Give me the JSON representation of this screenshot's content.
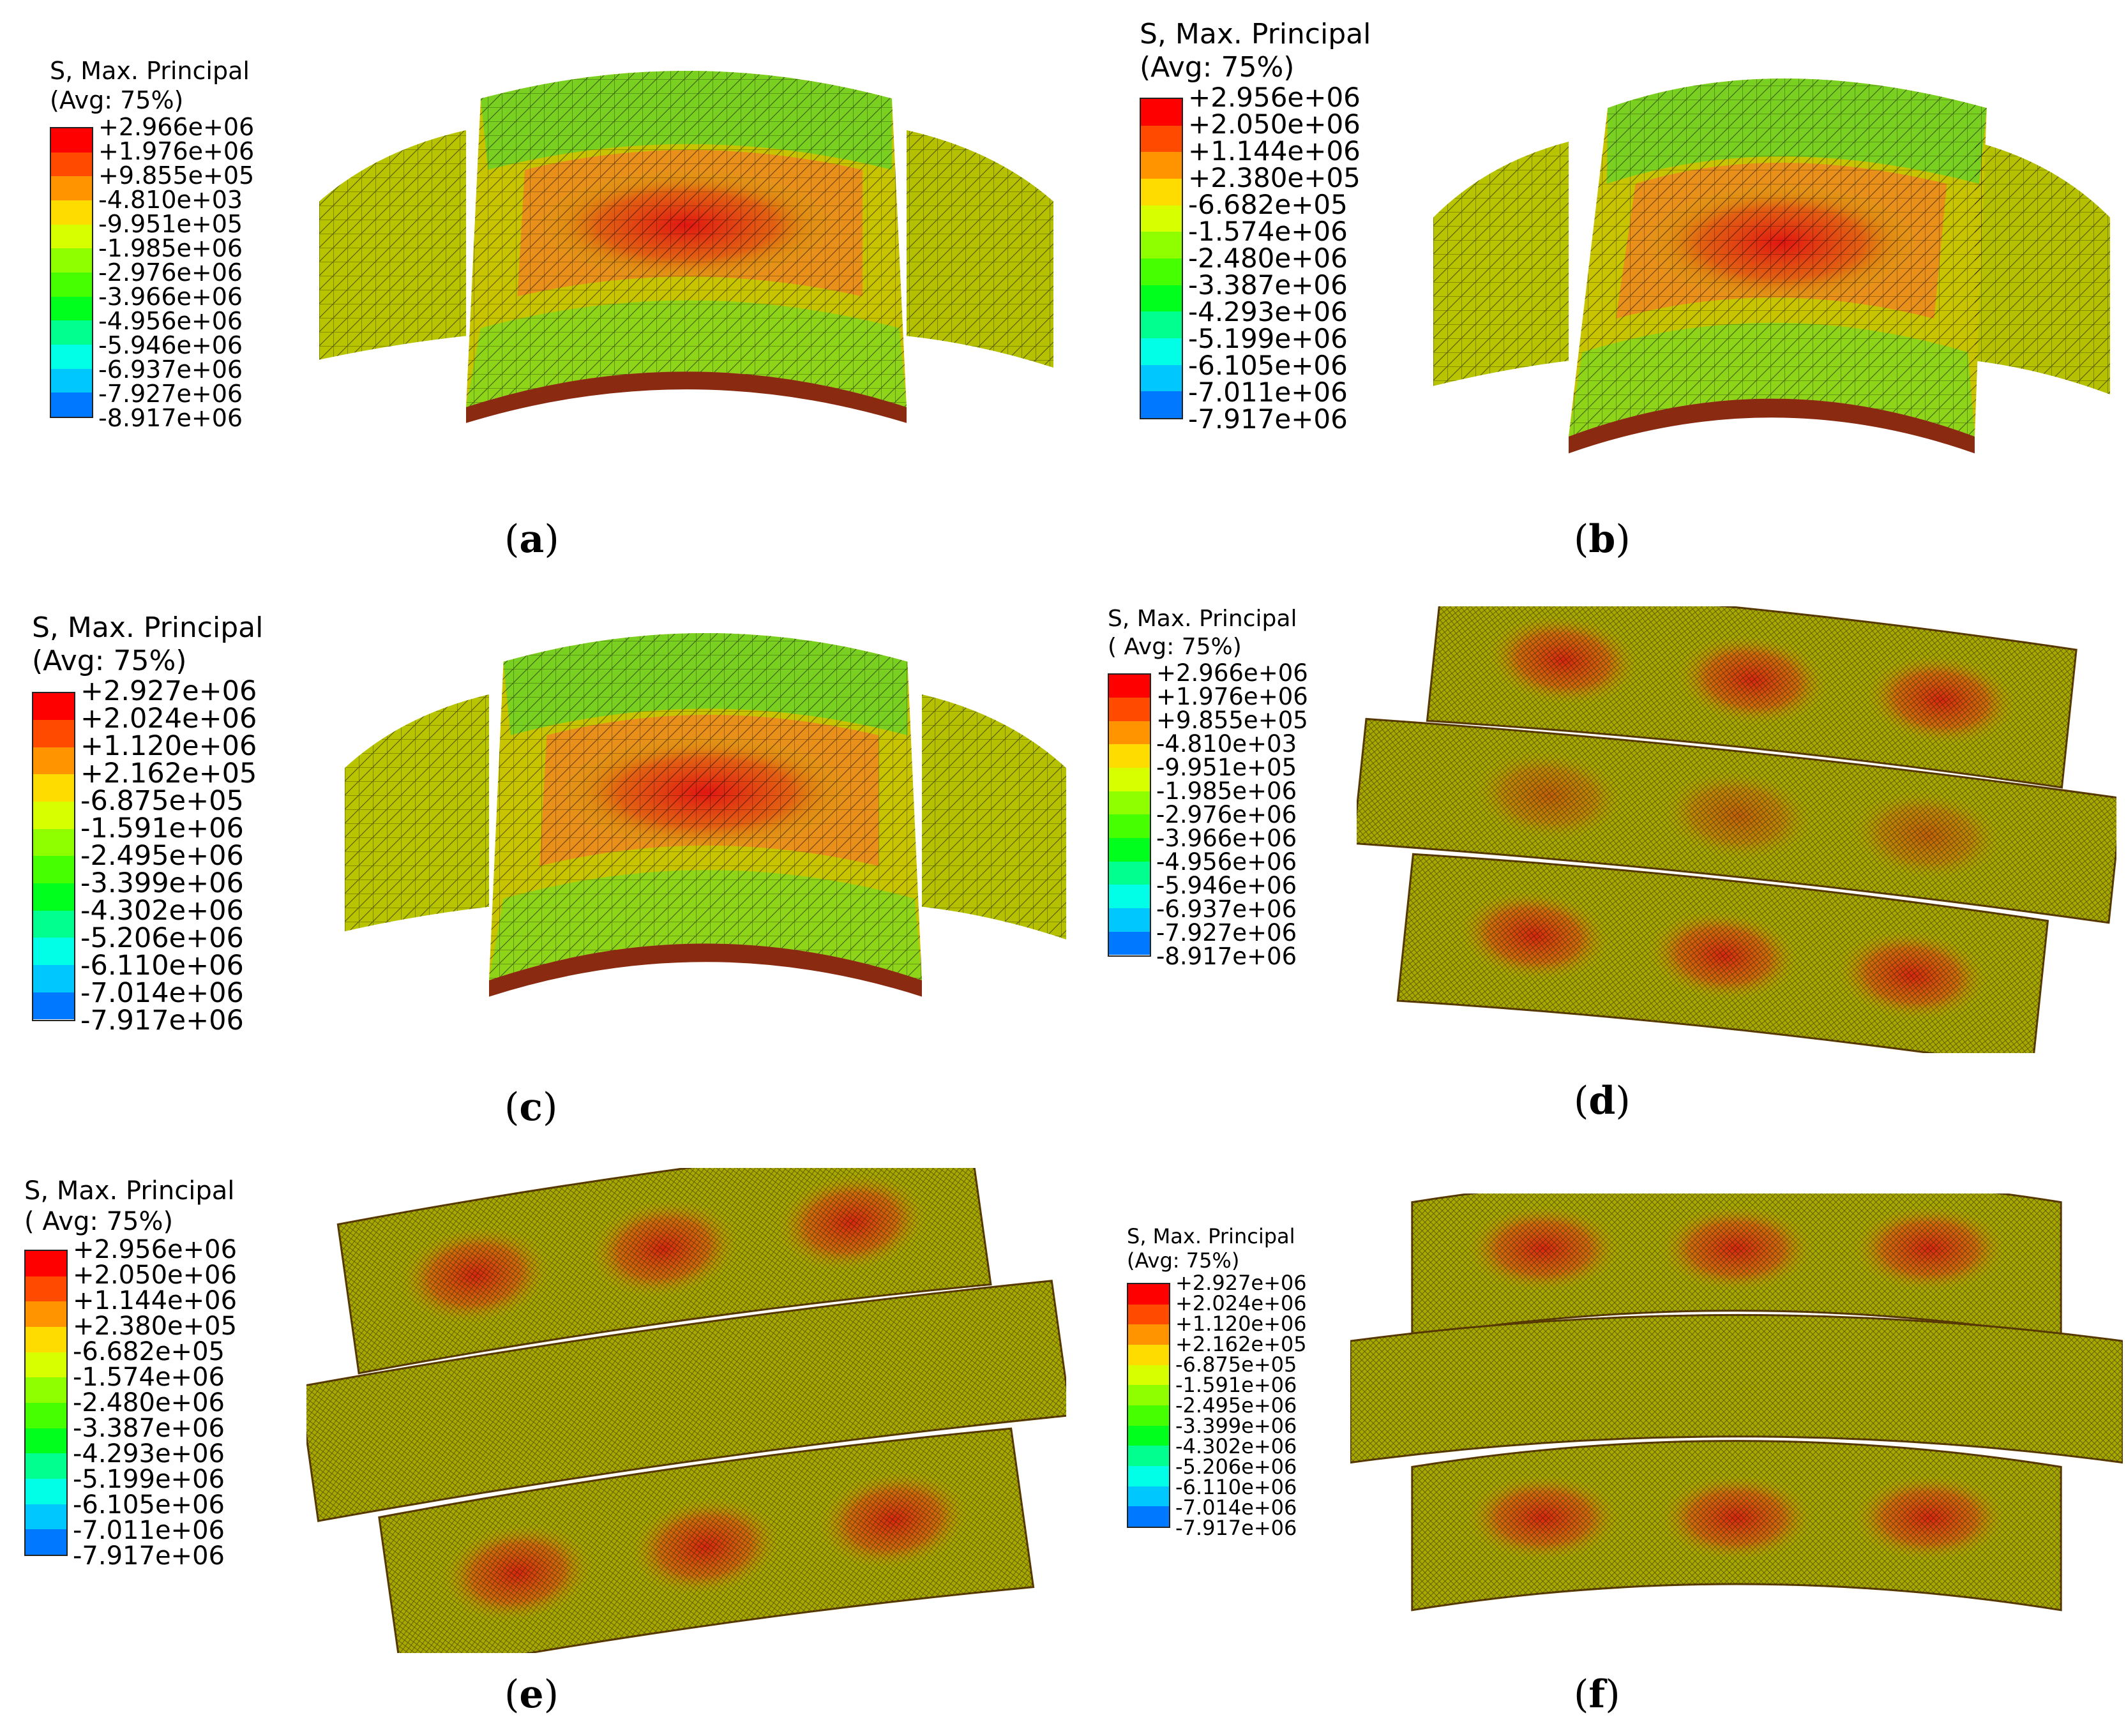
{
  "panels": [
    {
      "id": "a",
      "caption": "a",
      "legend": {
        "title_line1": "S, Max. Principal",
        "title_line2": "(Avg: 75%)",
        "values": [
          "+2.966e+06",
          "+1.976e+06",
          "+9.855e+05",
          "-4.810e+03",
          "-9.951e+05",
          "-1.985e+06",
          "-2.976e+06",
          "-3.966e+06",
          "-4.956e+06",
          "-5.946e+06",
          "-6.937e+06",
          "-7.927e+06",
          "-8.917e+06"
        ]
      },
      "view": "top-curved"
    },
    {
      "id": "b",
      "caption": "b",
      "legend": {
        "title_line1": "S, Max. Principal",
        "title_line2": "(Avg: 75%)",
        "values": [
          "+2.956e+06",
          "+2.050e+06",
          "+1.144e+06",
          "+2.380e+05",
          "-6.682e+05",
          "-1.574e+06",
          "-2.480e+06",
          "-3.387e+06",
          "-4.293e+06",
          "-5.199e+06",
          "-6.105e+06",
          "-7.011e+06",
          "-7.917e+06"
        ]
      },
      "view": "top-curved-skew"
    },
    {
      "id": "c",
      "caption": "c",
      "legend": {
        "title_line1": "S, Max. Principal",
        "title_line2": "(Avg: 75%)",
        "values": [
          "+2.927e+06",
          "+2.024e+06",
          "+1.120e+06",
          "+2.162e+05",
          "-6.875e+05",
          "-1.591e+06",
          "-2.495e+06",
          "-3.399e+06",
          "-4.302e+06",
          "-5.206e+06",
          "-6.110e+06",
          "-7.014e+06",
          "-7.917e+06"
        ]
      },
      "view": "top-curved"
    },
    {
      "id": "d",
      "caption": "d",
      "legend": {
        "title_line1": "S, Max. Principal",
        "title_line2": "( Avg: 75%)",
        "values": [
          "+2.966e+06",
          "+1.976e+06",
          "+9.855e+05",
          "-4.810e+03",
          "-9.951e+05",
          "-1.985e+06",
          "-2.976e+06",
          "-3.966e+06",
          "-4.956e+06",
          "-5.946e+06",
          "-6.937e+06",
          "-7.927e+06",
          "-8.917e+06"
        ]
      },
      "view": "bottom-skew"
    },
    {
      "id": "e",
      "caption": "e",
      "legend": {
        "title_line1": "S, Max. Principal",
        "title_line2": "( Avg: 75%)",
        "values": [
          "+2.956e+06",
          "+2.050e+06",
          "+1.144e+06",
          "+2.380e+05",
          "-6.682e+05",
          "-1.574e+06",
          "-2.480e+06",
          "-3.387e+06",
          "-4.293e+06",
          "-5.199e+06",
          "-6.105e+06",
          "-7.011e+06",
          "-7.917e+06"
        ]
      },
      "view": "bottom-tilt"
    },
    {
      "id": "f",
      "caption": "f",
      "legend": {
        "title_line1": "S, Max. Principal",
        "title_line2": "(Avg: 75%)",
        "values": [
          "+2.927e+06",
          "+2.024e+06",
          "+1.120e+06",
          "+2.162e+05",
          "-6.875e+05",
          "-1.591e+06",
          "-2.495e+06",
          "-3.399e+06",
          "-4.302e+06",
          "-5.206e+06",
          "-6.110e+06",
          "-7.014e+06",
          "-7.917e+06"
        ]
      },
      "view": "bottom-curved"
    }
  ],
  "colormap": [
    "#ff0000",
    "#ff4a00",
    "#ff9300",
    "#ffdc00",
    "#d8ff00",
    "#8fff00",
    "#46ff00",
    "#00ff1c",
    "#00ff8f",
    "#00ffe6",
    "#00c8ff",
    "#0078ff",
    "#0000ff"
  ]
}
